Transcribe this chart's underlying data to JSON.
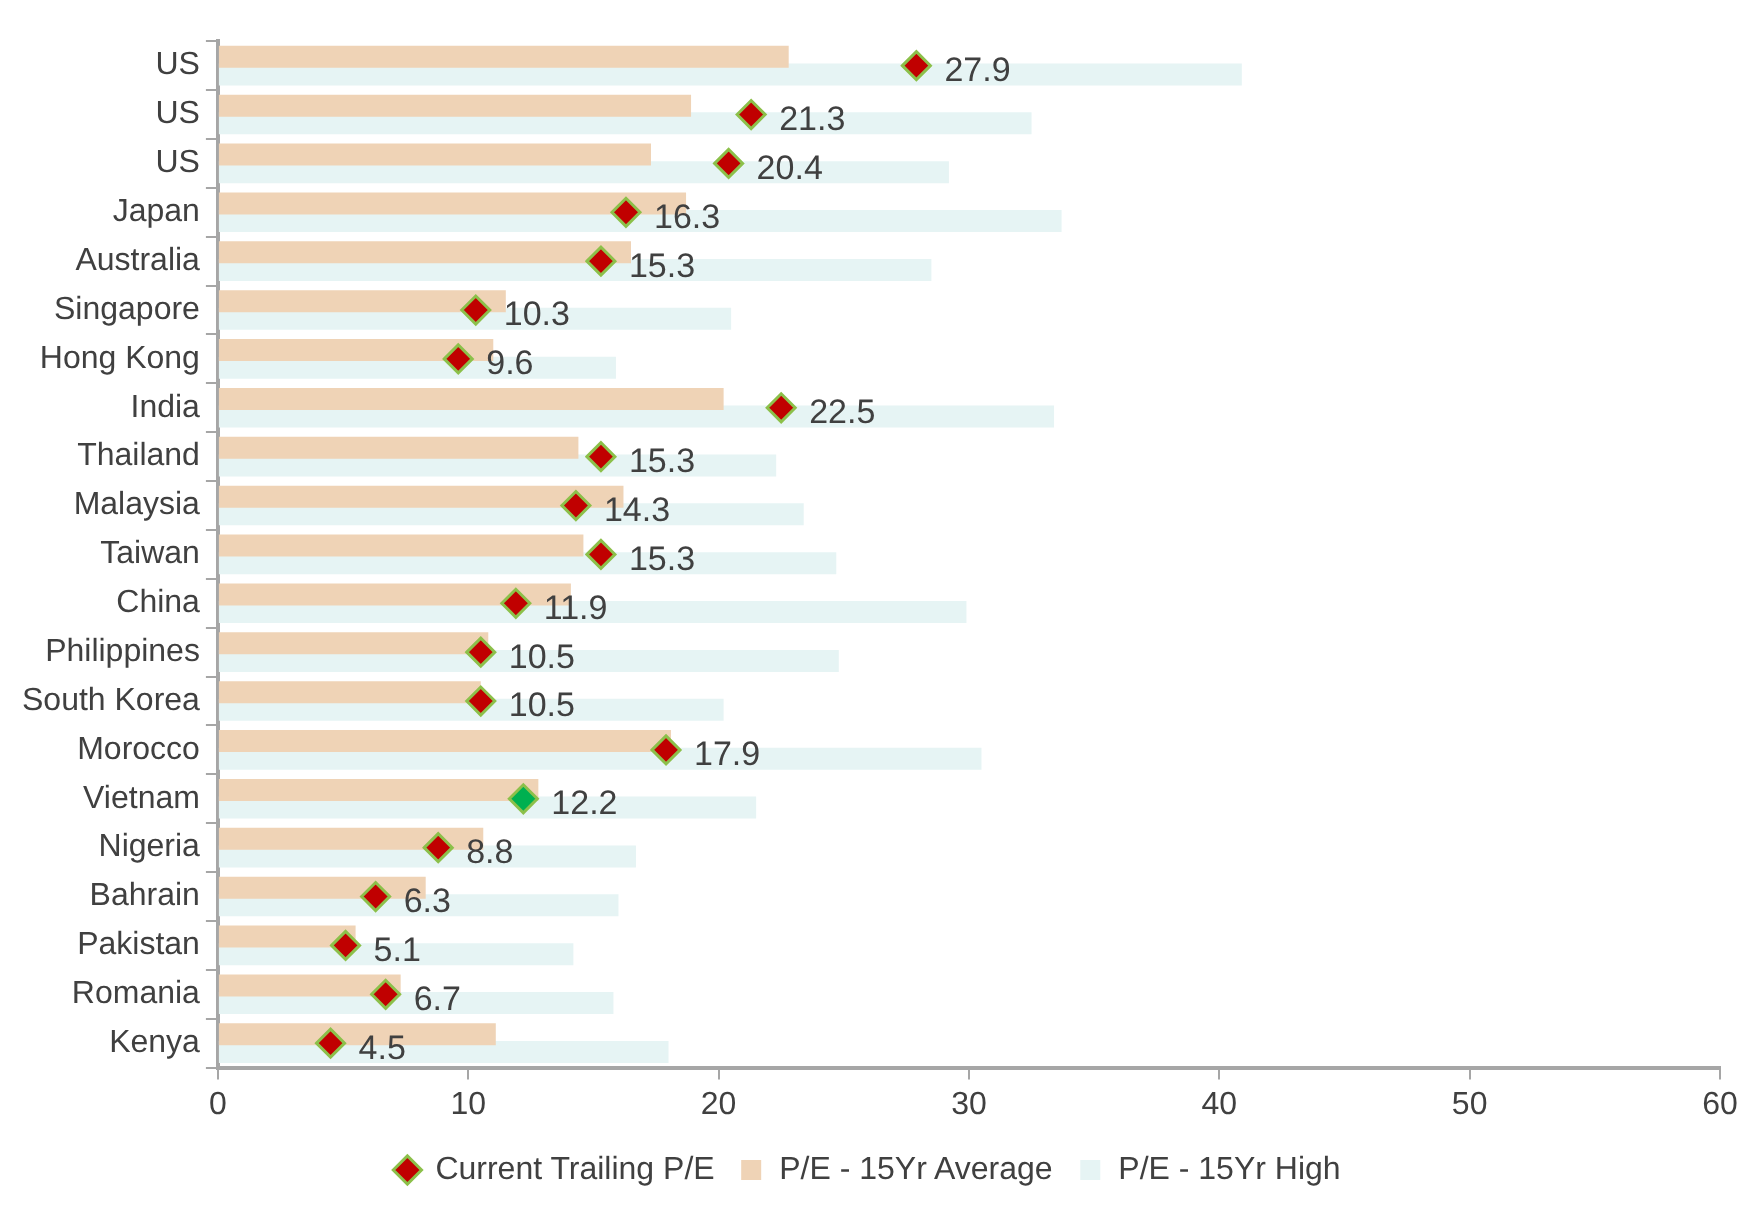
{
  "chart_data": {
    "type": "bar",
    "orientation": "horizontal",
    "categories": [
      "US",
      "US",
      "US",
      "Japan",
      "Australia",
      "Singapore",
      "Hong Kong",
      "India",
      "Thailand",
      "Malaysia",
      "Taiwan",
      "China",
      "Philippines",
      "South Korea",
      "Morocco",
      "Vietnam",
      "Nigeria",
      "Bahrain",
      "Pakistan",
      "Romania",
      "Kenya"
    ],
    "series": [
      {
        "name": "P/E - 15Yr Average",
        "color": "#efd3b6",
        "values": [
          22.8,
          18.9,
          17.3,
          18.7,
          16.5,
          11.5,
          11.0,
          20.2,
          14.4,
          16.2,
          14.6,
          14.1,
          10.8,
          10.5,
          18.1,
          12.8,
          10.6,
          8.3,
          5.5,
          7.3,
          11.1
        ]
      },
      {
        "name": "P/E - 15Yr High",
        "color": "#e6f4f4",
        "values": [
          40.9,
          32.5,
          29.2,
          33.7,
          28.5,
          20.5,
          15.9,
          33.4,
          22.3,
          23.4,
          24.7,
          29.9,
          24.8,
          20.2,
          30.5,
          21.5,
          16.7,
          16.0,
          14.2,
          15.8,
          18.0
        ]
      },
      {
        "name": "Current Trailing P/E",
        "type": "scatter",
        "marker": "diamond",
        "color": "#c00000",
        "colors": [
          "#c00000",
          "#c00000",
          "#c00000",
          "#c00000",
          "#c00000",
          "#c00000",
          "#c00000",
          "#c00000",
          "#c00000",
          "#c00000",
          "#c00000",
          "#c00000",
          "#c00000",
          "#c00000",
          "#c00000",
          "#00b050",
          "#c00000",
          "#c00000",
          "#c00000",
          "#c00000",
          "#c00000"
        ],
        "data_labels": true,
        "values": [
          27.9,
          21.3,
          20.4,
          16.3,
          15.3,
          10.3,
          9.6,
          22.5,
          15.3,
          14.3,
          15.3,
          11.9,
          10.5,
          10.5,
          17.9,
          12.2,
          8.8,
          6.3,
          5.1,
          6.7,
          4.5
        ]
      }
    ],
    "xlim": [
      0,
      60
    ],
    "xticks": [
      0,
      10,
      20,
      30,
      40,
      50,
      60
    ],
    "grid": false,
    "legend": "bottom"
  }
}
